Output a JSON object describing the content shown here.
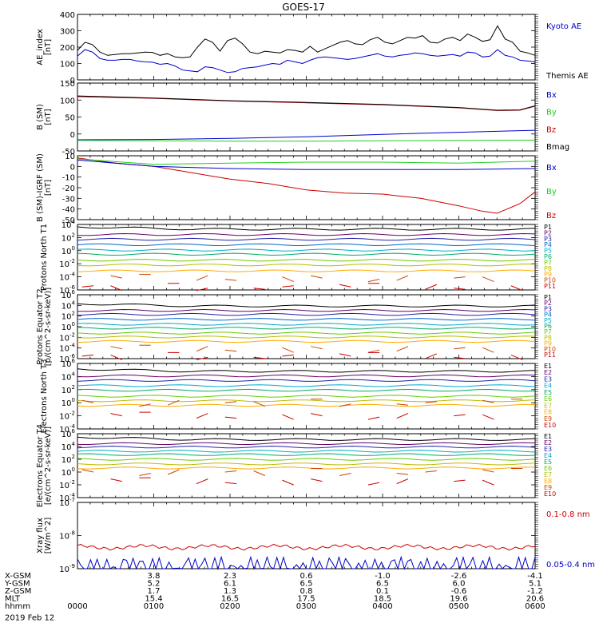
{
  "title": "GOES-17",
  "colors": {
    "axis": "#000000",
    "black": "#000000",
    "blue": "#0000cc",
    "green": "#22cc22",
    "red": "#cc0000",
    "darkred": "#880000"
  },
  "chart_data": [
    {
      "type": "line",
      "ylabel": "AE_index [nT]",
      "ylim": [
        0,
        400
      ],
      "yticks": [
        "400",
        "300",
        "200",
        "100",
        "0"
      ],
      "legend": [
        {
          "name": "Kyoto AE",
          "color": "#0000cc"
        },
        {
          "name": "Themis AE",
          "color": "#000000"
        }
      ],
      "series": [
        {
          "name": "Themis AE",
          "color": "#000000",
          "values": [
            180,
            230,
            215,
            170,
            150,
            155,
            160,
            160,
            165,
            170,
            168,
            150,
            160,
            140,
            135,
            140,
            200,
            250,
            230,
            175,
            240,
            255,
            220,
            170,
            160,
            175,
            170,
            165,
            185,
            180,
            170,
            205,
            170,
            190,
            210,
            230,
            240,
            220,
            215,
            245,
            260,
            230,
            220,
            240,
            260,
            255,
            270,
            230,
            225,
            250,
            260,
            240,
            280,
            260,
            235,
            245,
            330,
            250,
            230,
            175,
            165,
            150
          ]
        },
        {
          "name": "Kyoto AE",
          "color": "#0000cc",
          "values": [
            145,
            185,
            170,
            130,
            120,
            120,
            125,
            125,
            115,
            110,
            108,
            95,
            100,
            85,
            60,
            55,
            50,
            80,
            75,
            60,
            45,
            50,
            70,
            75,
            80,
            90,
            100,
            95,
            120,
            110,
            100,
            120,
            135,
            140,
            135,
            130,
            125,
            130,
            140,
            150,
            160,
            145,
            140,
            150,
            155,
            165,
            160,
            150,
            145,
            150,
            155,
            145,
            170,
            165,
            140,
            145,
            185,
            150,
            140,
            120,
            115,
            110
          ]
        }
      ]
    },
    {
      "type": "line",
      "ylabel": "B (SM) [nT]",
      "ylim": [
        -50,
        150
      ],
      "yticks": [
        "150",
        "100",
        "50",
        "0",
        "-50"
      ],
      "legend": [
        {
          "name": "Bx",
          "color": "#0000cc"
        },
        {
          "name": "By",
          "color": "#22cc22"
        },
        {
          "name": "Bz",
          "color": "#cc0000"
        },
        {
          "name": "Bmag",
          "color": "#000000"
        }
      ],
      "series": [
        {
          "name": "Bz",
          "color": "#cc0000",
          "x": [
            0,
            1,
            2,
            3,
            4,
            5,
            5.5,
            5.8,
            6
          ],
          "values": [
            110,
            105,
            97,
            92,
            86,
            77,
            69,
            70,
            82
          ]
        },
        {
          "name": "Bmag",
          "color": "#000000",
          "x": [
            0,
            1,
            2,
            3,
            4,
            5,
            5.5,
            5.8,
            6
          ],
          "values": [
            112,
            106,
            98,
            93,
            87,
            78,
            70,
            71,
            83
          ]
        },
        {
          "name": "Bx",
          "color": "#0000cc",
          "x": [
            0,
            1,
            2,
            3,
            4,
            5,
            6
          ],
          "values": [
            -17,
            -16,
            -13,
            -8,
            -1,
            5,
            11
          ]
        },
        {
          "name": "By",
          "color": "#22cc22",
          "x": [
            0,
            1,
            2,
            3,
            4,
            5,
            6
          ],
          "values": [
            -19,
            -20,
            -21,
            -21,
            -20,
            -19,
            -18
          ]
        }
      ]
    },
    {
      "type": "line",
      "ylabel": "B (SM)-IGRF (SM) [nT]",
      "ylim": [
        -50,
        10
      ],
      "yticks": [
        "10",
        "0",
        "-10",
        "-20",
        "-30",
        "-40",
        "-50"
      ],
      "legend": [
        {
          "name": "Bx",
          "color": "#0000cc"
        },
        {
          "name": "By",
          "color": "#22cc22"
        },
        {
          "name": "Bz",
          "color": "#cc0000"
        }
      ],
      "series": [
        {
          "name": "Bz",
          "color": "#cc0000",
          "x": [
            0,
            0.5,
            1,
            1.5,
            2,
            2.5,
            3,
            3.5,
            4,
            4.5,
            5,
            5.3,
            5.5,
            5.8,
            6
          ],
          "values": [
            8,
            3,
            0,
            -6,
            -12,
            -16,
            -22,
            -25,
            -26,
            -30,
            -37,
            -42,
            -44,
            -35,
            -24
          ]
        },
        {
          "name": "By",
          "color": "#22cc22",
          "x": [
            0,
            1,
            2,
            3,
            4,
            5,
            6
          ],
          "values": [
            7,
            2,
            3,
            4,
            4,
            3,
            5
          ]
        },
        {
          "name": "Bx",
          "color": "#0000cc",
          "x": [
            0,
            1,
            2,
            3,
            4,
            5,
            6
          ],
          "values": [
            6,
            0,
            -2,
            -3,
            -3,
            -3,
            -2
          ]
        }
      ]
    },
    {
      "type": "line",
      "ylabel": "Protons North T1",
      "yticks": [
        "10^4",
        "10^2",
        "10^0",
        "10^-2",
        "10^-4",
        "10^-6"
      ],
      "ylim_log10": [
        -7,
        4
      ],
      "channels": [
        {
          "name": "P1",
          "color": "#000000",
          "log": 3.2
        },
        {
          "name": "P2",
          "color": "#660066",
          "log": 2.3
        },
        {
          "name": "P3",
          "color": "#2222aa",
          "log": 1.5
        },
        {
          "name": "P4",
          "color": "#0066cc",
          "log": 0.6
        },
        {
          "name": "P5",
          "color": "#00aacc",
          "log": -0.3
        },
        {
          "name": "P6",
          "color": "#00aa66",
          "log": -1.0
        },
        {
          "name": "P7",
          "color": "#66cc00",
          "log": -2.0
        },
        {
          "name": "P8",
          "color": "#bbbb00",
          "log": -2.8
        },
        {
          "name": "P9",
          "color": "#ffaa00",
          "log": -3.8
        },
        {
          "name": "P10",
          "color": "#cc4400",
          "log": -5.0
        },
        {
          "name": "P11",
          "color": "#cc0000",
          "log": -6.5
        }
      ]
    },
    {
      "type": "line",
      "ylabel": "Protons Equator T2 [p/(cm^2-s-sr-keV)]",
      "yticks": [
        "10^6",
        "10^4",
        "10^2",
        "10^0",
        "10^-2",
        "10^-4",
        "10^-6"
      ],
      "ylim_log10": [
        -7,
        6
      ],
      "channels": [
        {
          "name": "P1",
          "color": "#000000",
          "log": 3.7
        },
        {
          "name": "P2",
          "color": "#660066",
          "log": 2.8
        },
        {
          "name": "P3",
          "color": "#2222aa",
          "log": 2.0
        },
        {
          "name": "P4",
          "color": "#0066cc",
          "log": 1.0
        },
        {
          "name": "P5",
          "color": "#00aacc",
          "log": 0.0
        },
        {
          "name": "P6",
          "color": "#00aa66",
          "log": -0.8
        },
        {
          "name": "P7",
          "color": "#66cc00",
          "log": -1.8
        },
        {
          "name": "P8",
          "color": "#bbbb00",
          "log": -2.6
        },
        {
          "name": "P9",
          "color": "#ffaa00",
          "log": -3.5
        },
        {
          "name": "P10",
          "color": "#cc4400",
          "log": -5.0
        },
        {
          "name": "P11",
          "color": "#cc0000",
          "log": -6.5
        }
      ]
    },
    {
      "type": "line",
      "ylabel": "Electrons North T3",
      "yticks": [
        "10^6",
        "10^4",
        "10^2",
        "10^0",
        "10^-2",
        "10^-4"
      ],
      "ylim_log10": [
        -4,
        6
      ],
      "channels": [
        {
          "name": "E1",
          "color": "#000000",
          "log": 4.8
        },
        {
          "name": "E2",
          "color": "#660066",
          "log": 4.1
        },
        {
          "name": "E3",
          "color": "#2222aa",
          "log": 3.4
        },
        {
          "name": "E4",
          "color": "#00aacc",
          "log": 2.6
        },
        {
          "name": "E5",
          "color": "#00aa66",
          "log": 1.9
        },
        {
          "name": "E6",
          "color": "#66cc00",
          "log": 1.0
        },
        {
          "name": "E7",
          "color": "#bbbb00",
          "log": 0.3
        },
        {
          "name": "E8",
          "color": "#ffaa00",
          "log": -0.4
        },
        {
          "name": "E9",
          "color": "#cc4400",
          "log": 0.0
        },
        {
          "name": "E10",
          "color": "#cc0000",
          "log": -2.0
        }
      ]
    },
    {
      "type": "line",
      "ylabel": "Electrons Equator T4 [e/(cm^2-s-sr-keV)]",
      "yticks": [
        "10^6",
        "10^4",
        "10^2",
        "10^0",
        "10^-2",
        "10^-4"
      ],
      "ylim_log10": [
        -5,
        6
      ],
      "channels": [
        {
          "name": "E1",
          "color": "#000000",
          "log": 5.0
        },
        {
          "name": "E2",
          "color": "#660066",
          "log": 4.3
        },
        {
          "name": "E3",
          "color": "#2222aa",
          "log": 3.7
        },
        {
          "name": "E4",
          "color": "#00aacc",
          "log": 3.0
        },
        {
          "name": "E5",
          "color": "#00aa66",
          "log": 2.4
        },
        {
          "name": "E6",
          "color": "#66cc00",
          "log": 1.6
        },
        {
          "name": "E7",
          "color": "#bbbb00",
          "log": 0.8
        },
        {
          "name": "E8",
          "color": "#ffaa00",
          "log": 0.1
        },
        {
          "name": "E9",
          "color": "#cc4400",
          "log": -0.6
        },
        {
          "name": "E10",
          "color": "#cc0000",
          "log": -2.2
        }
      ]
    },
    {
      "type": "line",
      "ylabel": "Xray flux [W/m^2]",
      "yticks": [
        "10^-7",
        "10^-8",
        "10^-9"
      ],
      "ylim_log10": [
        -9,
        -7
      ],
      "legend": [
        {
          "name": "0.1-0.8 nm",
          "color": "#cc0000"
        },
        {
          "name": "0.05-0.4 nm",
          "color": "#0000cc"
        }
      ],
      "series": [
        {
          "name": "0.1-0.8 nm",
          "color": "#cc0000",
          "level_log10": -8.35
        },
        {
          "name": "0.05-0.4 nm",
          "color": "#0000cc",
          "level_log10": -9.0
        }
      ]
    }
  ],
  "xaxis": {
    "hhmm": [
      "0000",
      "0100",
      "0200",
      "0300",
      "0400",
      "0500",
      "0600"
    ],
    "rows": [
      {
        "label": "X-GSM",
        "values": [
          "",
          "3.8",
          "2.3",
          "0.6",
          "-1.0",
          "-2.6",
          "-4.1"
        ]
      },
      {
        "label": "Y-GSM",
        "values": [
          "",
          "5.2",
          "6.1",
          "6.5",
          "6.5",
          "6.0",
          "5.1"
        ]
      },
      {
        "label": "Z-GSM",
        "values": [
          "",
          "1.7",
          "1.3",
          "0.8",
          "0.1",
          "-0.6",
          "-1.2"
        ]
      },
      {
        "label": "MLT",
        "values": [
          "",
          "15.4",
          "16.5",
          "17.5",
          "18.5",
          "19.6",
          "20.6"
        ]
      },
      {
        "label": "hhmm",
        "values": [
          "0000",
          "0100",
          "0200",
          "0300",
          "0400",
          "0500",
          "0600"
        ]
      }
    ],
    "date": "2019 Feb 12"
  }
}
